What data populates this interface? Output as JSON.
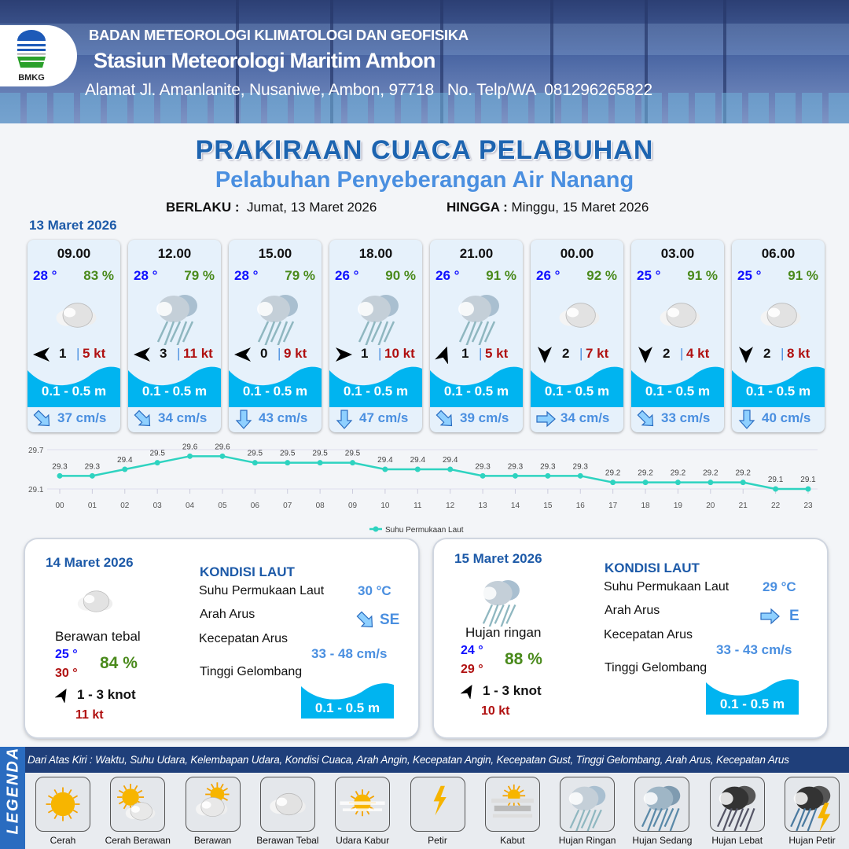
{
  "header": {
    "agency": "BADAN METEOROLOGI KLIMATOLOGI DAN GEOFISIKA",
    "station": "Stasiun Meteorologi Maritim Ambon",
    "address": "Alamat Jl. Amanlanite, Nusaniwe, Ambon, 97718   No. Telp/WA  081296265822",
    "logo_text": "BMKG"
  },
  "title": "PRAKIRAAN CUACA PELABUHAN",
  "subtitle": "Pelabuhan Penyeberangan Air Nanang",
  "validity": {
    "from_label": "BERLAKU :",
    "from": "Jumat, 13 Maret 2026",
    "to_label": "HINGGA :",
    "to": "Minggu, 15 Maret 2026"
  },
  "day1_label": "13 Maret 2026",
  "forecasts": [
    {
      "time": "09.00",
      "temp": "28 °",
      "hum": "83 %",
      "weather": "berawan-tebal",
      "wind_arrow_deg": 270,
      "wind": "1",
      "gust": "5 kt",
      "wave": "0.1 - 0.5 m",
      "current_arrow": "SE",
      "current": "37 cm/s"
    },
    {
      "time": "12.00",
      "temp": "28 °",
      "hum": "79 %",
      "weather": "hujan-ringan",
      "wind_arrow_deg": 270,
      "wind": "3",
      "gust": "11 kt",
      "wave": "0.1 - 0.5 m",
      "current_arrow": "SE",
      "current": "34 cm/s"
    },
    {
      "time": "15.00",
      "temp": "28 °",
      "hum": "79 %",
      "weather": "hujan-ringan",
      "wind_arrow_deg": 270,
      "wind": "0",
      "gust": "9 kt",
      "wave": "0.1 - 0.5 m",
      "current_arrow": "S",
      "current": "43 cm/s"
    },
    {
      "time": "18.00",
      "temp": "26 °",
      "hum": "90 %",
      "weather": "hujan-ringan",
      "wind_arrow_deg": 90,
      "wind": "1",
      "gust": "10 kt",
      "wave": "0.1 - 0.5 m",
      "current_arrow": "S",
      "current": "47 cm/s"
    },
    {
      "time": "21.00",
      "temp": "26 °",
      "hum": "91 %",
      "weather": "hujan-ringan",
      "wind_arrow_deg": 20,
      "wind": "1",
      "gust": "5 kt",
      "wave": "0.1 - 0.5 m",
      "current_arrow": "SE",
      "current": "39 cm/s"
    },
    {
      "time": "00.00",
      "temp": "26 °",
      "hum": "92 %",
      "weather": "berawan-tebal",
      "wind_arrow_deg": 180,
      "wind": "2",
      "gust": "7 kt",
      "wave": "0.1 - 0.5 m",
      "current_arrow": "E",
      "current": "34 cm/s"
    },
    {
      "time": "03.00",
      "temp": "25 °",
      "hum": "91 %",
      "weather": "berawan-tebal",
      "wind_arrow_deg": 180,
      "wind": "2",
      "gust": "4 kt",
      "wave": "0.1 - 0.5 m",
      "current_arrow": "SE",
      "current": "33 cm/s"
    },
    {
      "time": "06.00",
      "temp": "25 °",
      "hum": "91 %",
      "weather": "berawan-tebal",
      "wind_arrow_deg": 180,
      "wind": "2",
      "gust": "8 kt",
      "wave": "0.1 - 0.5 m",
      "current_arrow": "S",
      "current": "40 cm/s"
    }
  ],
  "chart_data": {
    "type": "line",
    "categories": [
      "00",
      "01",
      "02",
      "03",
      "04",
      "05",
      "06",
      "07",
      "08",
      "09",
      "10",
      "11",
      "12",
      "13",
      "14",
      "15",
      "16",
      "17",
      "18",
      "19",
      "20",
      "21",
      "22",
      "23"
    ],
    "series": [
      {
        "name": "Suhu Permukaan Laut",
        "values": [
          29.3,
          29.3,
          29.4,
          29.5,
          29.6,
          29.6,
          29.5,
          29.5,
          29.5,
          29.5,
          29.4,
          29.4,
          29.4,
          29.3,
          29.3,
          29.3,
          29.3,
          29.2,
          29.2,
          29.2,
          29.2,
          29.2,
          29.1,
          29.1
        ],
        "color": "#2ed3c0"
      }
    ],
    "yticks": [
      "29.7",
      "29.1"
    ],
    "ylim": [
      29.1,
      29.7
    ],
    "legend": "bottom-center",
    "grid": true
  },
  "days": [
    {
      "date": "14 Maret 2026",
      "weather": "berawan-tebal",
      "weather_label": "Berawan tebal",
      "tmin": "25 °",
      "tmax": "30 °",
      "hum": "84 %",
      "wind_arrow_deg": 30,
      "wind": "1 - 3 knot",
      "gust": "11 kt",
      "sea": {
        "title": "KONDISI LAUT",
        "sst_label": "Suhu Permukaan Laut",
        "sst": "30 °C",
        "dir_label": "Arah Arus",
        "dir": "SE",
        "speed_label": "Kecepatan Arus",
        "speed": "33 - 48 cm/s",
        "wave_label": "Tinggi Gelombang",
        "wave": "0.1 - 0.5 m"
      }
    },
    {
      "date": "15 Maret 2026",
      "weather": "hujan-ringan",
      "weather_label": "Hujan ringan",
      "tmin": "24 °",
      "tmax": "29 °",
      "hum": "88 %",
      "wind_arrow_deg": 30,
      "wind": "1 - 3 knot",
      "gust": "10 kt",
      "sea": {
        "title": "KONDISI LAUT",
        "sst_label": "Suhu Permukaan Laut",
        "sst": "29 °C",
        "dir_label": "Arah Arus",
        "dir": "E",
        "speed_label": "Kecepatan Arus",
        "speed": "33 - 43 cm/s",
        "wave_label": "Tinggi Gelombang",
        "wave": "0.1 - 0.5 m"
      }
    }
  ],
  "legend": {
    "side_label": "LEGENDA",
    "description": "Dari Atas Kiri : Waktu, Suhu Udara, Kelembapan Udara, Kondisi Cuaca, Arah Angin, Kecepatan Angin, Kecepatan Gust, Tinggi Gelombang, Arah Arus, Kecepatan Arus",
    "items": [
      {
        "label": "Cerah",
        "icon": "cerah"
      },
      {
        "label": "Cerah Berawan",
        "icon": "cerah-berawan"
      },
      {
        "label": "Berawan",
        "icon": "berawan"
      },
      {
        "label": "Berawan Tebal",
        "icon": "berawan-tebal"
      },
      {
        "label": "Udara Kabur",
        "icon": "udara-kabur"
      },
      {
        "label": "Petir",
        "icon": "petir"
      },
      {
        "label": "Kabut",
        "icon": "kabut"
      },
      {
        "label": "Hujan Ringan",
        "icon": "hujan-ringan"
      },
      {
        "label": "Hujan Sedang",
        "icon": "hujan-sedang"
      },
      {
        "label": "Hujan Lebat",
        "icon": "hujan-lebat"
      },
      {
        "label": "Hujan Petir",
        "icon": "hujan-petir"
      }
    ]
  }
}
